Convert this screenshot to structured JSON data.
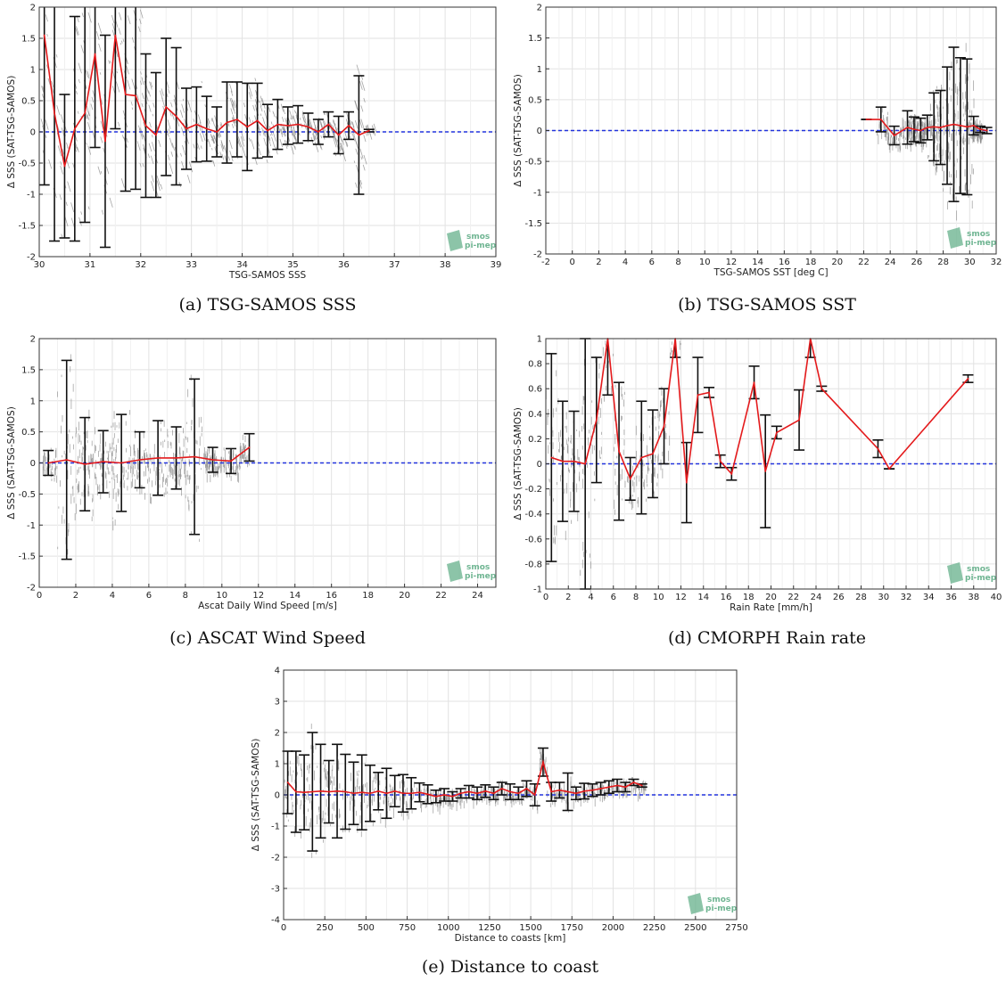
{
  "chart_data": [
    {
      "id": "a",
      "type": "line",
      "caption": "(a) TSG-SAMOS SSS",
      "xlabel": "TSG-SAMOS SSS",
      "ylabel": "Δ SSS (SAT-TSG-SAMOS)",
      "xlim": [
        30,
        39
      ],
      "ylim": [
        -2,
        2
      ],
      "xticks": [
        30,
        31,
        32,
        33,
        34,
        35,
        36,
        37,
        38,
        39
      ],
      "yticks": [
        -2,
        -1.5,
        -1,
        -0.5,
        0,
        0.5,
        1,
        1.5,
        2
      ],
      "grid": true,
      "scatter_region": {
        "x": [
          30,
          36.6
        ],
        "y": [
          -2,
          2
        ]
      },
      "zero_line": 0,
      "series": [
        {
          "x": [
            30.1,
            30.3,
            30.5,
            30.7,
            30.9,
            31.1,
            31.3,
            31.5,
            31.7,
            31.9,
            32.1,
            32.3,
            32.5,
            32.7,
            32.9,
            33.1,
            33.3,
            33.5,
            33.7,
            33.9,
            34.1,
            34.3,
            34.5,
            34.7,
            34.9,
            35.1,
            35.3,
            35.5,
            35.7,
            35.9,
            36.1,
            36.3,
            36.5
          ],
          "y": [
            1.55,
            0.3,
            -0.55,
            0.05,
            0.3,
            1.25,
            -0.15,
            1.55,
            0.6,
            0.58,
            0.1,
            -0.05,
            0.4,
            0.25,
            0.05,
            0.12,
            0.05,
            0.0,
            0.15,
            0.2,
            0.08,
            0.18,
            0.02,
            0.12,
            0.1,
            0.12,
            0.08,
            0.0,
            0.12,
            -0.05,
            0.1,
            -0.05,
            0.02
          ],
          "err": [
            2.4,
            2.05,
            1.15,
            1.8,
            1.75,
            1.5,
            1.7,
            1.5,
            1.55,
            1.5,
            1.15,
            1.0,
            1.1,
            1.1,
            0.65,
            0.6,
            0.52,
            0.4,
            0.65,
            0.6,
            0.7,
            0.6,
            0.42,
            0.4,
            0.3,
            0.3,
            0.22,
            0.2,
            0.2,
            0.3,
            0.22,
            0.95,
            0.02
          ]
        }
      ]
    },
    {
      "id": "b",
      "type": "line",
      "caption": "(b) TSG-SAMOS SST",
      "xlabel": "TSG-SAMOS SST [deg C]",
      "ylabel": "Δ SSS (SAT-TSG-SAMOS)",
      "xlim": [
        -2,
        32
      ],
      "ylim": [
        -2,
        2
      ],
      "xticks": [
        -2,
        0,
        2,
        4,
        6,
        8,
        10,
        12,
        14,
        16,
        18,
        20,
        22,
        24,
        26,
        28,
        30,
        32
      ],
      "yticks": [
        -2,
        -1.5,
        -1,
        -0.5,
        0,
        0.5,
        1,
        1.5,
        2
      ],
      "grid": true,
      "scatter_region": {
        "x": [
          23,
          31
        ],
        "y": [
          -1.4,
          2
        ]
      },
      "zero_line": 0,
      "series": [
        {
          "x": [
            22.2,
            23.3,
            24.3,
            25.3,
            25.8,
            26.3,
            26.8,
            27.3,
            27.8,
            28.3,
            28.8,
            29.3,
            29.8,
            30.3,
            30.8,
            31.3
          ],
          "y": [
            0.18,
            0.18,
            -0.08,
            0.05,
            0.02,
            0.0,
            0.05,
            0.06,
            0.05,
            0.08,
            0.1,
            0.08,
            0.06,
            0.08,
            0.02,
            0.0
          ],
          "err": [
            0.0,
            0.2,
            0.15,
            0.27,
            0.2,
            0.2,
            0.2,
            0.55,
            0.6,
            0.95,
            1.25,
            1.1,
            1.1,
            0.15,
            0.05,
            0.05
          ]
        }
      ]
    },
    {
      "id": "c",
      "type": "line",
      "caption": "(c) ASCAT Wind Speed",
      "xlabel": "Ascat Daily Wind Speed [m/s]",
      "ylabel": "Δ SSS (SAT-TSG-SAMOS)",
      "xlim": [
        0,
        25
      ],
      "ylim": [
        -2,
        2
      ],
      "xticks": [
        0,
        2,
        4,
        6,
        8,
        10,
        12,
        14,
        16,
        18,
        20,
        22,
        24
      ],
      "yticks": [
        -2,
        -1.5,
        -1,
        -0.5,
        0,
        0.5,
        1,
        1.5,
        2
      ],
      "grid": true,
      "scatter_region": {
        "x": [
          0.2,
          11.5
        ],
        "y": [
          -2,
          2
        ]
      },
      "zero_line": 0,
      "series": [
        {
          "x": [
            0.5,
            1.5,
            2.5,
            3.5,
            4.5,
            5.5,
            6.5,
            7.5,
            8.5,
            9.5,
            10.5,
            11.5
          ],
          "y": [
            0.0,
            0.05,
            -0.02,
            0.02,
            0.0,
            0.05,
            0.08,
            0.08,
            0.1,
            0.05,
            0.03,
            0.25
          ],
          "err": [
            0.2,
            1.6,
            0.75,
            0.5,
            0.78,
            0.45,
            0.6,
            0.5,
            1.25,
            0.2,
            0.2,
            0.22
          ]
        }
      ]
    },
    {
      "id": "d",
      "type": "line",
      "caption": "(d) CMORPH Rain rate",
      "xlabel": "Rain Rate [mm/h]",
      "ylabel": "Δ SSS (SAT-TSG-SAMOS)",
      "xlim": [
        0,
        40
      ],
      "ylim": [
        -1,
        1
      ],
      "xticks": [
        0,
        2,
        4,
        6,
        8,
        10,
        12,
        14,
        16,
        18,
        20,
        22,
        24,
        26,
        28,
        30,
        32,
        34,
        36,
        38,
        40
      ],
      "yticks": [
        -1,
        -0.8,
        -0.6,
        -0.4,
        -0.2,
        0,
        0.2,
        0.4,
        0.6,
        0.8,
        1
      ],
      "grid": true,
      "scatter_region": {
        "x": [
          0,
          12
        ],
        "y": [
          -1,
          1
        ]
      },
      "zero_line": 0,
      "series": [
        {
          "x": [
            0.5,
            1.5,
            2.5,
            3.5,
            4.5,
            5.5,
            6.5,
            7.5,
            8.5,
            9.5,
            10.5,
            11.5,
            12.5,
            13.5,
            14.5,
            15.5,
            16.5,
            18.5,
            19.5,
            20.5,
            22.5,
            23.5,
            24.5,
            29.5,
            30.5,
            37.5
          ],
          "y": [
            0.05,
            0.02,
            0.02,
            0.0,
            0.35,
            1.05,
            0.1,
            -0.12,
            0.05,
            0.08,
            0.3,
            1.05,
            -0.15,
            0.55,
            0.57,
            0.02,
            -0.08,
            0.65,
            -0.06,
            0.25,
            0.35,
            1.05,
            0.6,
            0.12,
            -0.04,
            0.68
          ],
          "err": [
            0.83,
            0.48,
            0.4,
            1.0,
            0.5,
            0.5,
            0.55,
            0.17,
            0.45,
            0.35,
            0.3,
            0.2,
            0.32,
            0.3,
            0.04,
            0.05,
            0.05,
            0.13,
            0.45,
            0.05,
            0.24,
            0.2,
            0.02,
            0.07,
            0.0,
            0.03
          ]
        }
      ]
    },
    {
      "id": "e",
      "type": "line",
      "caption": "(e) Distance to coast",
      "xlabel": "Distance to coasts [km]",
      "ylabel": "Δ SSS (SAT-TSG-SAMOS)",
      "xlim": [
        0,
        2750
      ],
      "ylim": [
        -4,
        4
      ],
      "xticks": [
        0,
        250,
        500,
        750,
        1000,
        1250,
        1500,
        1750,
        2000,
        2250,
        2500,
        2750
      ],
      "yticks": [
        -4,
        -3,
        -2,
        -1,
        0,
        1,
        2,
        3,
        4
      ],
      "grid": true,
      "scatter_region": {
        "x": [
          0,
          2200
        ],
        "y": [
          -2.5,
          4
        ]
      },
      "zero_line": 0,
      "series": [
        {
          "x": [
            25,
            75,
            125,
            175,
            225,
            275,
            325,
            375,
            425,
            475,
            525,
            575,
            625,
            675,
            725,
            775,
            825,
            875,
            925,
            975,
            1025,
            1075,
            1125,
            1175,
            1225,
            1275,
            1325,
            1375,
            1425,
            1475,
            1525,
            1575,
            1625,
            1675,
            1725,
            1775,
            1825,
            1875,
            1925,
            1975,
            2025,
            2075,
            2125,
            2175
          ],
          "y": [
            0.4,
            0.1,
            0.08,
            0.1,
            0.12,
            0.1,
            0.12,
            0.1,
            0.05,
            0.08,
            0.05,
            0.12,
            0.05,
            0.12,
            0.05,
            0.05,
            0.08,
            0.02,
            -0.05,
            0.0,
            -0.05,
            0.05,
            0.1,
            0.05,
            0.12,
            0.05,
            0.2,
            0.1,
            0.05,
            0.2,
            0.0,
            1.05,
            0.1,
            0.15,
            0.1,
            0.05,
            0.12,
            0.15,
            0.2,
            0.25,
            0.3,
            0.25,
            0.4,
            0.3
          ],
          "err": [
            1.0,
            1.3,
            1.2,
            1.9,
            1.5,
            1.0,
            1.5,
            1.2,
            1.0,
            1.2,
            0.9,
            0.6,
            0.8,
            0.5,
            0.6,
            0.5,
            0.3,
            0.3,
            0.2,
            0.2,
            0.15,
            0.15,
            0.2,
            0.2,
            0.2,
            0.2,
            0.2,
            0.25,
            0.2,
            0.25,
            0.35,
            0.45,
            0.3,
            0.25,
            0.6,
            0.2,
            0.25,
            0.2,
            0.2,
            0.2,
            0.2,
            0.15,
            0.1,
            0.05
          ]
        }
      ]
    }
  ],
  "logo": {
    "line1": "smos",
    "line2": "pi-mep"
  },
  "colors": {
    "mean_line": "#e41a1c",
    "error_bar": "#111111",
    "scatter": "#888888",
    "zero_line": "#2233dd",
    "grid": "#e2e2e2",
    "logo": "#6fb592"
  }
}
